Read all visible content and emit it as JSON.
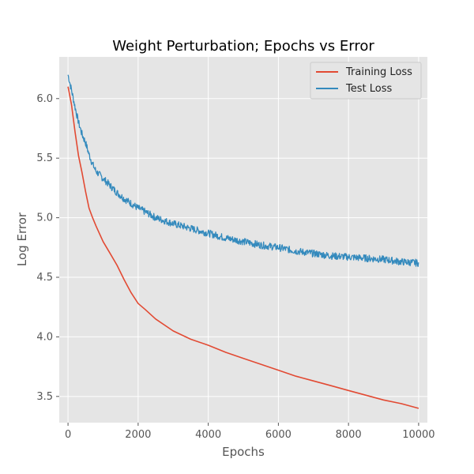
{
  "chart_data": {
    "type": "line",
    "title": "Weight Perturbation; Epochs vs Error",
    "xlabel": "Epochs",
    "ylabel": "Log Error",
    "xlim": [
      -250,
      10250
    ],
    "ylim": [
      3.28,
      6.35
    ],
    "x_ticks": [
      0,
      2000,
      4000,
      6000,
      8000,
      10000
    ],
    "x_tick_labels": [
      "0",
      "2000",
      "4000",
      "6000",
      "8000",
      "10000"
    ],
    "y_ticks": [
      3.5,
      4.0,
      4.5,
      5.0,
      5.5,
      6.0
    ],
    "y_tick_labels": [
      "3.5",
      "4.0",
      "4.5",
      "5.0",
      "5.5",
      "6.0"
    ],
    "grid": true,
    "legend_position": "top-right",
    "series": [
      {
        "name": "Training Loss",
        "color": "#E24A33",
        "x": [
          0,
          100,
          200,
          300,
          400,
          500,
          600,
          700,
          800,
          1000,
          1200,
          1400,
          1600,
          1800,
          2000,
          2200,
          2500,
          3000,
          3500,
          4000,
          4500,
          5000,
          5500,
          6000,
          6500,
          7000,
          7500,
          8000,
          8500,
          9000,
          9500,
          10000
        ],
        "y": [
          6.1,
          5.95,
          5.72,
          5.52,
          5.38,
          5.22,
          5.08,
          5.0,
          4.93,
          4.8,
          4.7,
          4.6,
          4.48,
          4.37,
          4.28,
          4.23,
          4.15,
          4.05,
          3.98,
          3.93,
          3.87,
          3.82,
          3.77,
          3.72,
          3.67,
          3.63,
          3.59,
          3.55,
          3.51,
          3.47,
          3.44,
          3.4
        ]
      },
      {
        "name": "Test Loss",
        "color": "#348ABD",
        "x": [
          0,
          100,
          200,
          300,
          400,
          500,
          600,
          700,
          800,
          1000,
          1200,
          1400,
          1600,
          1800,
          2000,
          2200,
          2500,
          3000,
          3500,
          4000,
          4500,
          5000,
          5500,
          6000,
          6500,
          7000,
          7500,
          8000,
          8500,
          9000,
          9500,
          10000
        ],
        "y": [
          6.2,
          6.07,
          5.93,
          5.8,
          5.7,
          5.63,
          5.53,
          5.45,
          5.39,
          5.33,
          5.27,
          5.21,
          5.16,
          5.12,
          5.08,
          5.05,
          5.0,
          4.95,
          4.91,
          4.87,
          4.83,
          4.8,
          4.77,
          4.75,
          4.72,
          4.7,
          4.68,
          4.67,
          4.66,
          4.65,
          4.63,
          4.62
        ]
      }
    ]
  }
}
